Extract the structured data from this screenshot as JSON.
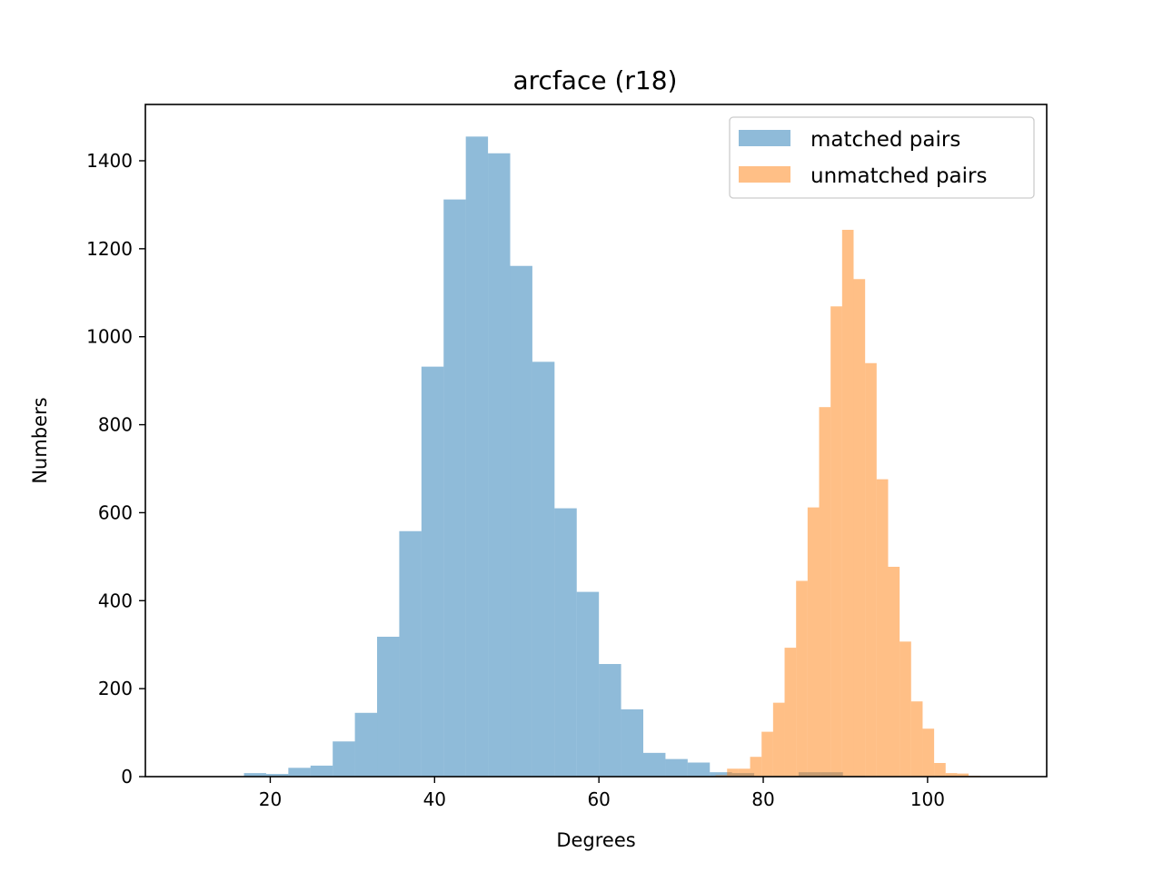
{
  "chart_data": {
    "type": "bar",
    "title": "arcface (r18)",
    "xlabel": "Degrees",
    "ylabel": "Numbers",
    "xlim": [
      4.8,
      114.5
    ],
    "ylim": [
      0,
      1528
    ],
    "xticks": [
      20,
      40,
      60,
      80,
      100
    ],
    "yticks": [
      0,
      200,
      400,
      600,
      800,
      1000,
      1200,
      1400
    ],
    "grid": false,
    "legend": {
      "position": "top-right",
      "entries": [
        "matched pairs",
        "unmatched pairs"
      ]
    },
    "series": [
      {
        "name": "matched pairs",
        "color": "#1f77b4",
        "alpha": 0.5,
        "bin_edges": [
          16.8,
          19.5,
          22.2,
          24.9,
          27.6,
          30.3,
          33.0,
          35.7,
          38.4,
          41.1,
          43.8,
          46.5,
          49.2,
          51.9,
          54.6,
          57.3,
          60.0,
          62.7,
          65.4,
          68.1,
          70.8,
          73.5,
          76.2,
          78.9,
          81.6,
          84.3,
          87.0,
          89.7,
          92.4
        ],
        "values": [
          8,
          6,
          20,
          25,
          80,
          145,
          318,
          558,
          932,
          1312,
          1455,
          1417,
          1161,
          943,
          610,
          420,
          256,
          153,
          54,
          40,
          32,
          10,
          8,
          2,
          2,
          10,
          10,
          2
        ]
      },
      {
        "name": "unmatched pairs",
        "color": "#ff7f0e",
        "alpha": 0.5,
        "bin_edges": [
          74.2,
          75.6,
          77.0,
          78.4,
          79.8,
          81.2,
          82.6,
          84.0,
          85.4,
          86.8,
          88.2,
          89.6,
          91.0,
          92.4,
          93.8,
          95.2,
          96.6,
          98.0,
          99.4,
          100.8,
          102.2,
          103.6,
          105.0,
          106.4
        ],
        "values": [
          3,
          18,
          18,
          45,
          102,
          168,
          293,
          445,
          612,
          840,
          1069,
          1243,
          1131,
          940,
          676,
          477,
          307,
          171,
          109,
          31,
          8,
          7,
          2
        ]
      }
    ]
  }
}
